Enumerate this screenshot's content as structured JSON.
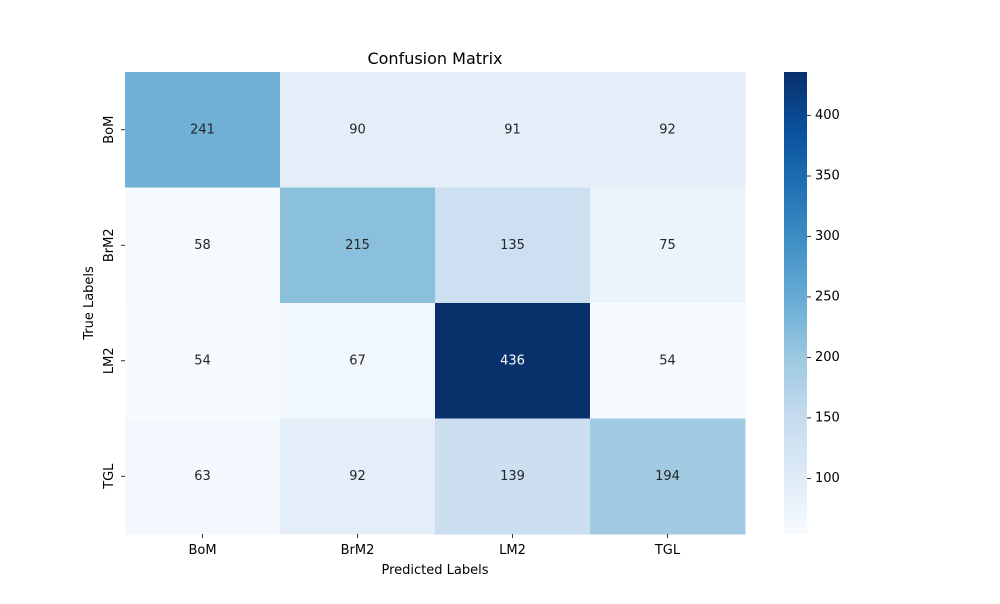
{
  "chart_data": {
    "type": "heatmap",
    "title": "Confusion Matrix",
    "xlabel": "Predicted Labels",
    "ylabel": "True Labels",
    "x_categories": [
      "BoM",
      "BrM2",
      "LM2",
      "TGL"
    ],
    "y_categories": [
      "BoM",
      "BrM2",
      "LM2",
      "TGL"
    ],
    "values": [
      [
        241,
        90,
        91,
        92
      ],
      [
        58,
        215,
        135,
        75
      ],
      [
        54,
        67,
        436,
        54
      ],
      [
        63,
        92,
        139,
        194
      ]
    ],
    "colormap": "Blues",
    "color_range": [
      54,
      436
    ],
    "colorbar_ticks": [
      100,
      150,
      200,
      250,
      300,
      350,
      400
    ],
    "colorbar_tick_labels": [
      "100",
      "150",
      "200",
      "250",
      "300",
      "350",
      "400"
    ],
    "annotate": true,
    "grid": false
  }
}
